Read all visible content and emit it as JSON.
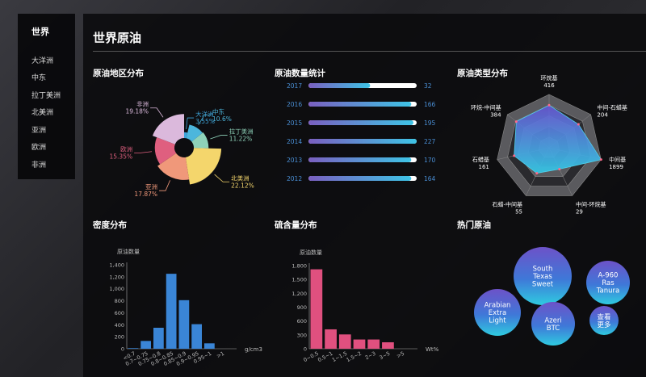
{
  "sidebar": {
    "title": "世界",
    "items": [
      "大洋洲",
      "中东",
      "拉丁美洲",
      "北美洲",
      "亚洲",
      "欧洲",
      "非洲"
    ]
  },
  "header": {
    "title": "世界原油"
  },
  "sections": {
    "region": "原油地区分布",
    "count": "原油数量统计",
    "type": "原油类型分布",
    "density": "密度分布",
    "sulfur": "硫含量分布",
    "hot": "热门原油"
  },
  "chart_data": [
    {
      "type": "pie",
      "variant": "rose",
      "slices": [
        {
          "name": "大洋洲",
          "value": 3.55,
          "label": "3.55%",
          "color": "#3da4da"
        },
        {
          "name": "中东",
          "value": 10.6,
          "label": "10.6%",
          "color": "#4cb6dc"
        },
        {
          "name": "拉丁美洲",
          "value": 11.22,
          "label": "11.22%",
          "color": "#8ed2b9"
        },
        {
          "name": "北美洲",
          "value": 22.12,
          "label": "22.12%",
          "color": "#f4d66c"
        },
        {
          "name": "亚洲",
          "value": 17.87,
          "label": "17.87%",
          "color": "#f0987a"
        },
        {
          "name": "欧洲",
          "value": 15.35,
          "label": "15.35%",
          "color": "#df5f7f"
        },
        {
          "name": "非洲",
          "value": 19.18,
          "label": "19.18%",
          "color": "#dbb9dc"
        }
      ]
    },
    {
      "type": "bar",
      "orientation": "horizontal",
      "categories": [
        "2017",
        "2016",
        "2015",
        "2014",
        "2013",
        "2012"
      ],
      "values": [
        "32",
        "166",
        "195",
        "227",
        "170",
        "164"
      ],
      "fill_percent": [
        57,
        95,
        97,
        100,
        95,
        95
      ]
    },
    {
      "type": "radar",
      "scale": "log",
      "max": 1899,
      "indicators": [
        {
          "name": "环烷基",
          "value": 416
        },
        {
          "name": "中间-石蜡基",
          "value": 204
        },
        {
          "name": "中间基",
          "value": 1899
        },
        {
          "name": "中间-环烷基",
          "value": 29
        },
        {
          "name": "石蜡-中间基",
          "value": 55
        },
        {
          "name": "石蜡基",
          "value": 161
        },
        {
          "name": "环烷-中间基",
          "value": 384
        }
      ]
    },
    {
      "type": "bar",
      "ylabel": "原油数量",
      "xlabel": "g/cm3",
      "ylim": [
        0,
        1400
      ],
      "yticks": [
        "0",
        "200",
        "400",
        "600",
        "800",
        "1,000",
        "1,200",
        "1,400"
      ],
      "categories": [
        "<0.7",
        "0.7~0.75",
        "0.75~0.8",
        "0.8~0.85",
        "0.85~0.9",
        "0.9~0.95",
        "0.95~1",
        ">1"
      ],
      "values": [
        10,
        130,
        350,
        1250,
        810,
        410,
        90,
        0
      ],
      "color": "#3a85d6"
    },
    {
      "type": "bar",
      "ylabel": "原油数量",
      "xlabel": "Wt%",
      "ylim": [
        0,
        1800
      ],
      "yticks": [
        "0",
        "300",
        "600",
        "900",
        "1,200",
        "1,500",
        "1,800"
      ],
      "categories": [
        "0~0.5",
        "0.5~1",
        "1~1.5",
        "1.5~2",
        "2~3",
        "3~5",
        ">5"
      ],
      "values": [
        1720,
        420,
        310,
        200,
        200,
        140,
        0
      ],
      "color": "#e0507f"
    }
  ],
  "hot": [
    {
      "lines": [
        "South",
        "Texas",
        "Sweet"
      ]
    },
    {
      "lines": [
        "A-960",
        "Ras",
        "Tanura"
      ]
    },
    {
      "lines": [
        "Arabian",
        "Extra",
        "Light"
      ]
    },
    {
      "lines": [
        "Azeri",
        "BTC"
      ]
    },
    {
      "lines": [
        "查看",
        "更多"
      ]
    }
  ]
}
